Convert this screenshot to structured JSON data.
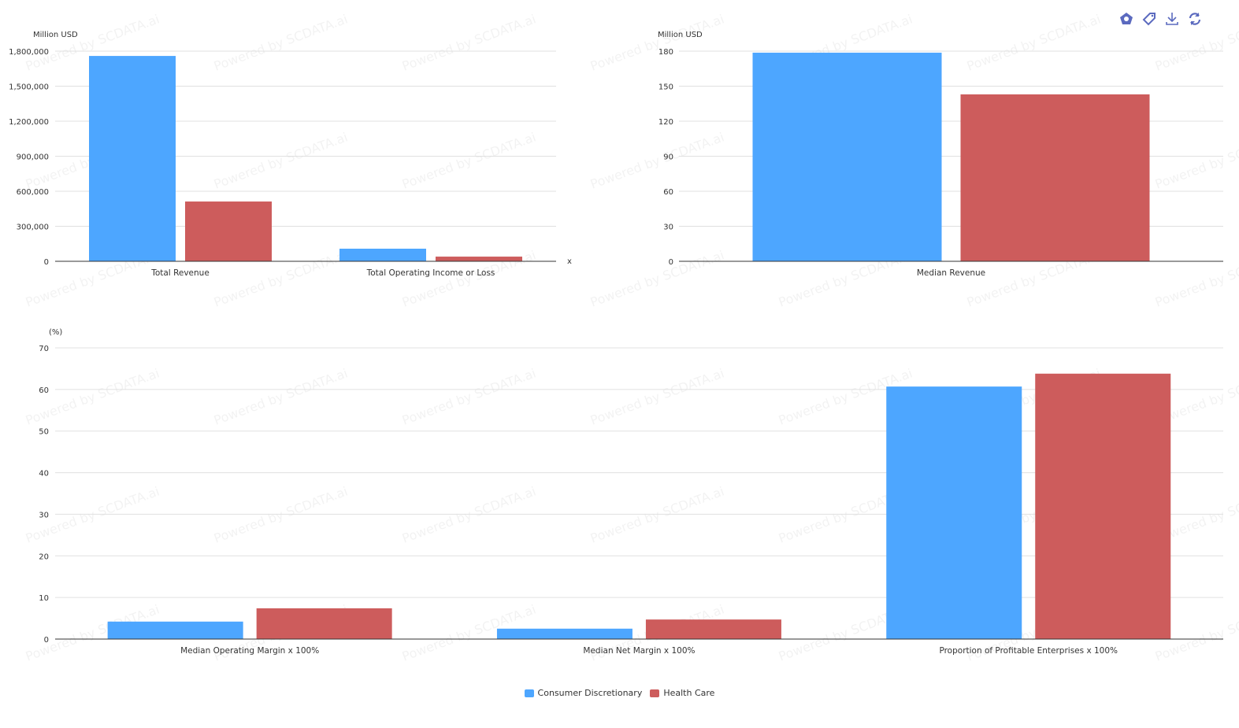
{
  "watermark": "Powered by SCDATA.ai",
  "toolbar": {
    "icons": [
      "theme-icon",
      "tag-icon",
      "download-icon",
      "refresh-icon"
    ],
    "color": "#5b6abf"
  },
  "legend": [
    {
      "name": "Consumer Discretionary",
      "color": "#4da6ff"
    },
    {
      "name": "Health Care",
      "color": "#cd5c5c"
    }
  ],
  "chart_data": [
    {
      "type": "bar",
      "ylabel": "Million USD",
      "xlabel": "x",
      "categories": [
        "Total Revenue",
        "Total Operating Income or Loss"
      ],
      "yticks": [
        "0",
        "300,000",
        "600,000",
        "900,000",
        "1,200,000",
        "1,500,000",
        "1,800,000"
      ],
      "ylim": [
        0,
        1800000
      ],
      "series": [
        {
          "name": "Consumer Discretionary",
          "values": [
            1759000,
            108000
          ]
        },
        {
          "name": "Health Care",
          "values": [
            512000,
            40000
          ]
        }
      ]
    },
    {
      "type": "bar",
      "ylabel": "Million USD",
      "categories": [
        "Median Revenue"
      ],
      "yticks": [
        "0",
        "30",
        "60",
        "90",
        "120",
        "150",
        "180"
      ],
      "ylim": [
        0,
        180
      ],
      "series": [
        {
          "name": "Consumer Discretionary",
          "values": [
            178.7
          ]
        },
        {
          "name": "Health Care",
          "values": [
            143
          ]
        }
      ]
    },
    {
      "type": "bar",
      "ylabel": "(%)",
      "categories": [
        "Median Operating Margin x 100%",
        "Median Net Margin x 100%",
        "Proportion of Profitable Enterprises x 100%"
      ],
      "yticks": [
        "0",
        "10",
        "20",
        "30",
        "40",
        "50",
        "60",
        "70"
      ],
      "ylim": [
        0,
        70
      ],
      "series": [
        {
          "name": "Consumer Discretionary",
          "values": [
            4.2,
            2.5,
            60.7
          ]
        },
        {
          "name": "Health Care",
          "values": [
            7.4,
            4.7,
            63.8
          ]
        }
      ]
    }
  ]
}
